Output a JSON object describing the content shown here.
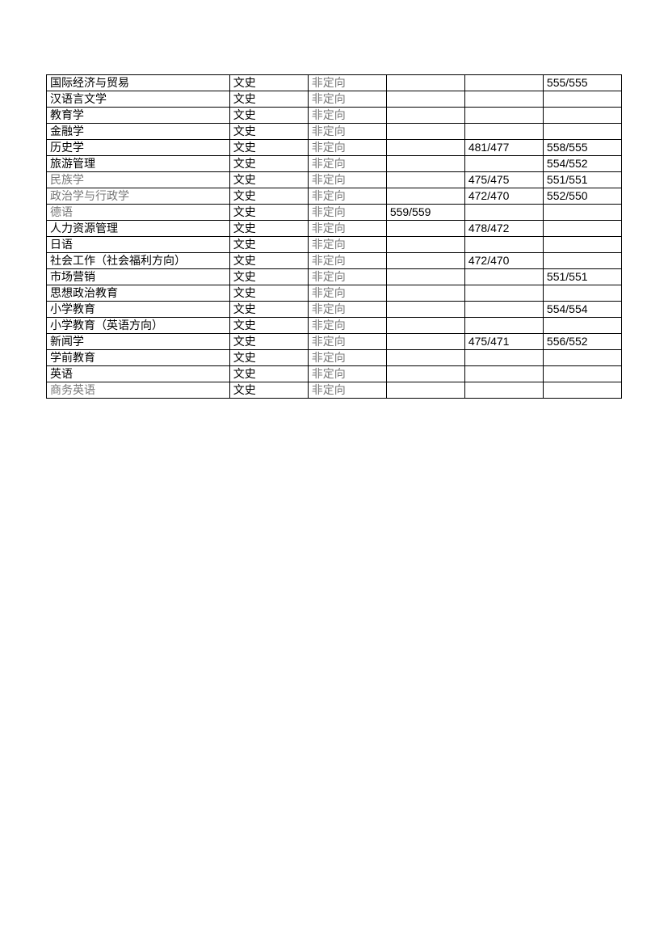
{
  "table": {
    "type": "table",
    "background_color": "#ffffff",
    "border_color": "#000000",
    "text_color_normal": "#000000",
    "text_color_gray": "#787878",
    "font_size": 14,
    "column_widths_pct": [
      28.5,
      12.2,
      12.2,
      12.2,
      12.2,
      12.2
    ],
    "rows": [
      {
        "c1": "国际经济与贸易",
        "c2": "文史",
        "c3": "非定向",
        "c4": "",
        "c5": "",
        "c6": "555/555"
      },
      {
        "c1": "汉语言文学",
        "c2": "文史",
        "c3": "非定向",
        "c4": "",
        "c5": "",
        "c6": ""
      },
      {
        "c1": "教育学",
        "c2": "文史",
        "c3": "非定向",
        "c4": "",
        "c5": "",
        "c6": ""
      },
      {
        "c1": "金融学",
        "c2": "文史",
        "c3": "非定向",
        "c4": "",
        "c5": "",
        "c6": ""
      },
      {
        "c1": "历史学",
        "c2": "文史",
        "c3": "非定向",
        "c4": "",
        "c5": "481/477",
        "c6": "558/555"
      },
      {
        "c1": "旅游管理",
        "c2": "文史",
        "c3": "非定向",
        "c4": "",
        "c5": "",
        "c6": "554/552"
      },
      {
        "c1": "民族学",
        "c2": "文史",
        "c3": "非定向",
        "c4": "",
        "c5": "475/475",
        "c6": "551/551",
        "c1_gray": true
      },
      {
        "c1": "政治学与行政学",
        "c2": "文史",
        "c3": "非定向",
        "c4": "",
        "c5": "472/470",
        "c6": "552/550",
        "c1_gray": true
      },
      {
        "c1": "德语",
        "c2": "文史",
        "c3": "非定向",
        "c4": "559/559",
        "c5": "",
        "c6": "",
        "c1_gray": true
      },
      {
        "c1": "人力资源管理",
        "c2": "文史",
        "c3": "非定向",
        "c4": "",
        "c5": "478/472",
        "c6": ""
      },
      {
        "c1": "日语",
        "c2": "文史",
        "c3": "非定向",
        "c4": "",
        "c5": "",
        "c6": ""
      },
      {
        "c1": "社会工作（社会福利方向）",
        "c2": "文史",
        "c3": "非定向",
        "c4": "",
        "c5": "472/470",
        "c6": ""
      },
      {
        "c1": "市场营销",
        "c2": "文史",
        "c3": "非定向",
        "c4": "",
        "c5": "",
        "c6": "551/551"
      },
      {
        "c1": "思想政治教育",
        "c2": "文史",
        "c3": "非定向",
        "c4": "",
        "c5": "",
        "c6": ""
      },
      {
        "c1": "小学教育",
        "c2": "文史",
        "c3": "非定向",
        "c4": "",
        "c5": "",
        "c6": "554/554"
      },
      {
        "c1": "小学教育（英语方向）",
        "c2": "文史",
        "c3": "非定向",
        "c4": "",
        "c5": "",
        "c6": ""
      },
      {
        "c1": "新闻学",
        "c2": "文史",
        "c3": "非定向",
        "c4": "",
        "c5": "475/471",
        "c6": "556/552"
      },
      {
        "c1": "学前教育",
        "c2": "文史",
        "c3": "非定向",
        "c4": "",
        "c5": "",
        "c6": ""
      },
      {
        "c1": "英语",
        "c2": "文史",
        "c3": "非定向",
        "c4": "",
        "c5": "",
        "c6": ""
      },
      {
        "c1": "商务英语",
        "c2": "文史",
        "c3": "非定向",
        "c4": "",
        "c5": "",
        "c6": "",
        "c1_gray": true
      }
    ]
  }
}
